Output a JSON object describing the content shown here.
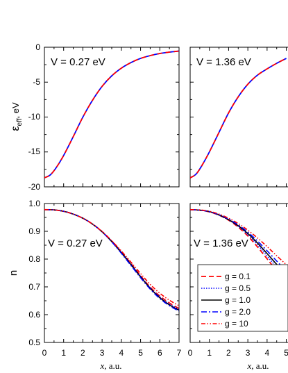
{
  "chart_data": [
    {
      "type": "line",
      "panel": "top-left",
      "annotation": "V = 0.27 eV",
      "ylabel_main": "ε",
      "ylabel_sub": "eff",
      "ylabel_unit": ", eV",
      "xlim": [
        0,
        7
      ],
      "ylim": [
        -20,
        0
      ],
      "yticks": [
        "0",
        "-5",
        "-10",
        "-15",
        "-20"
      ],
      "x": [
        0,
        0.3,
        0.6,
        1.0,
        1.5,
        2.0,
        2.5,
        3.0,
        3.5,
        4.0,
        4.5,
        5.0,
        5.5,
        6.0,
        6.5,
        7.0
      ],
      "y": [
        -18.7,
        -18.3,
        -17.3,
        -15.5,
        -12.8,
        -10.0,
        -7.6,
        -5.6,
        -4.1,
        -3.0,
        -2.2,
        -1.6,
        -1.2,
        -0.9,
        -0.7,
        -0.55
      ]
    },
    {
      "type": "line",
      "panel": "top-right",
      "annotation": "V = 1.36 eV",
      "xlim": [
        0,
        7
      ],
      "ylim": [
        -20,
        0
      ],
      "x": [
        0,
        0.3,
        0.6,
        1.0,
        1.5,
        2.0,
        2.5,
        3.0,
        3.5,
        4.0,
        4.5,
        5.0
      ],
      "y": [
        -18.7,
        -18.2,
        -17.0,
        -15.0,
        -12.2,
        -9.4,
        -7.1,
        -5.3,
        -4.0,
        -3.1,
        -2.3,
        -1.6
      ]
    },
    {
      "type": "line",
      "panel": "bottom-left",
      "annotation": "V = 0.27 eV",
      "ylabel": "n",
      "xlabel_var": "x",
      "xlabel_unit": ", a.u.",
      "xlim": [
        0,
        7
      ],
      "ylim": [
        0.5,
        1.0
      ],
      "xticks": [
        "0",
        "1",
        "2",
        "3",
        "4",
        "5",
        "6",
        "7"
      ],
      "yticks": [
        "1.0",
        "0.9",
        "0.8",
        "0.7",
        "0.6",
        "0.5"
      ],
      "x": [
        0,
        0.5,
        1.0,
        1.5,
        2.0,
        2.5,
        3.0,
        3.5,
        4.0,
        4.5,
        5.0,
        5.5,
        6.0,
        6.5,
        7.0
      ],
      "series": [
        {
          "name": "g = 0.1",
          "values": [
            0.978,
            0.977,
            0.972,
            0.962,
            0.947,
            0.926,
            0.899,
            0.865,
            0.826,
            0.784,
            0.74,
            0.699,
            0.667,
            0.642,
            0.622
          ]
        },
        {
          "name": "g = 0.5",
          "values": [
            0.978,
            0.977,
            0.972,
            0.962,
            0.947,
            0.926,
            0.899,
            0.864,
            0.825,
            0.782,
            0.738,
            0.697,
            0.664,
            0.638,
            0.619
          ]
        },
        {
          "name": "g = 1.0",
          "values": [
            0.978,
            0.977,
            0.972,
            0.962,
            0.947,
            0.926,
            0.898,
            0.863,
            0.823,
            0.78,
            0.736,
            0.695,
            0.661,
            0.635,
            0.616
          ]
        },
        {
          "name": "g = 2.0",
          "values": [
            0.978,
            0.977,
            0.972,
            0.962,
            0.947,
            0.926,
            0.898,
            0.862,
            0.821,
            0.777,
            0.733,
            0.692,
            0.658,
            0.632,
            0.613
          ]
        },
        {
          "name": "g = 10",
          "values": [
            0.978,
            0.977,
            0.972,
            0.962,
            0.947,
            0.926,
            0.899,
            0.866,
            0.829,
            0.789,
            0.748,
            0.709,
            0.677,
            0.652,
            0.632
          ]
        }
      ]
    },
    {
      "type": "line",
      "panel": "bottom-right",
      "annotation": "V = 1.36 eV",
      "xlabel_var": "x",
      "xlabel_unit": ", a.u.",
      "xlim": [
        0,
        7
      ],
      "ylim": [
        0.5,
        1.0
      ],
      "xticks": [
        "0",
        "1",
        "2",
        "3",
        "4",
        "5"
      ],
      "x": [
        0,
        0.5,
        1.0,
        1.5,
        2.0,
        2.5,
        3.0,
        3.5,
        4.0,
        4.5,
        5.0
      ],
      "series": [
        {
          "name": "g = 0.1",
          "values": [
            0.978,
            0.976,
            0.97,
            0.958,
            0.94,
            0.915,
            0.883,
            0.844,
            0.801,
            0.758,
            0.718
          ]
        },
        {
          "name": "g = 0.5",
          "values": [
            0.978,
            0.976,
            0.97,
            0.958,
            0.941,
            0.918,
            0.888,
            0.852,
            0.811,
            0.77,
            0.732
          ]
        },
        {
          "name": "g = 1.0",
          "values": [
            0.978,
            0.976,
            0.971,
            0.959,
            0.942,
            0.92,
            0.892,
            0.858,
            0.82,
            0.781,
            0.745
          ]
        },
        {
          "name": "g = 2.0",
          "values": [
            0.978,
            0.976,
            0.971,
            0.96,
            0.944,
            0.923,
            0.897,
            0.865,
            0.83,
            0.793,
            0.758
          ]
        },
        {
          "name": "g = 10",
          "values": [
            0.978,
            0.977,
            0.972,
            0.962,
            0.947,
            0.928,
            0.904,
            0.876,
            0.845,
            0.812,
            0.78
          ]
        }
      ]
    }
  ],
  "legend": [
    {
      "label": "g = 0.1",
      "color": "#ff0000",
      "dash": "7,4",
      "width": 1.8
    },
    {
      "label": "g = 0.5",
      "color": "#0000ff",
      "dash": "1.5,2",
      "width": 1.6
    },
    {
      "label": "g = 1.0",
      "color": "#000000",
      "dash": "",
      "width": 1.6
    },
    {
      "label": "g = 2.0",
      "color": "#0000ff",
      "dash": "8,3,2,3",
      "width": 1.6
    },
    {
      "label": "g = 10",
      "color": "#ff0000",
      "dash": "6,2.5,1.5,2.5,1.5,2.5",
      "width": 1.6
    }
  ],
  "top_curve_color": "#0000ff",
  "top_curve_overlay_color": "#ff0000"
}
